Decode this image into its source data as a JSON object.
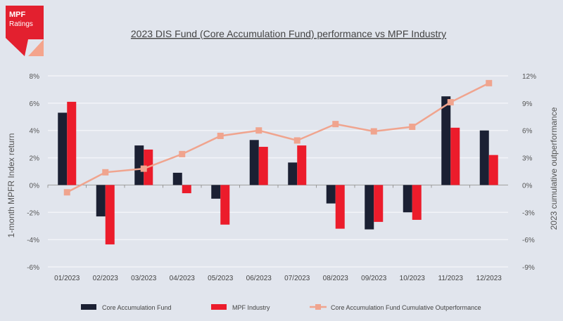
{
  "logo": {
    "line1": "MPF",
    "line2": "Ratings",
    "color": "#e3202f",
    "accent": "#f4a48c"
  },
  "chart_data": {
    "type": "bar+line",
    "title": "2023 DIS Fund (Core Accumulation Fund) performance vs MPF Industry",
    "ylabel": "1-month MPFR Index return",
    "y2label": "2023 cumulative outperformance",
    "ylim": [
      -6,
      8
    ],
    "yticks": [
      "8%",
      "6%",
      "4%",
      "2%",
      "0%",
      "-2%",
      "-4%",
      "-6%"
    ],
    "y2lim": [
      -9,
      12
    ],
    "y2ticks": [
      "12%",
      "9%",
      "6%",
      "3%",
      "0%",
      "-3%",
      "-6%",
      "-9%"
    ],
    "grid": true,
    "legend_position": "bottom",
    "categories": [
      "01/2023",
      "02/2023",
      "03/2023",
      "04/2023",
      "05/2023",
      "06/2023",
      "07/2023",
      "08/2023",
      "09/2023",
      "10/2023",
      "11/2023",
      "12/2023"
    ],
    "series": [
      {
        "name": "Core Accumulation Fund",
        "type": "bar",
        "axis": "left",
        "color": "#1b2033",
        "values": [
          5.3,
          -2.3,
          2.9,
          0.9,
          -1.0,
          3.3,
          1.65,
          -1.35,
          -3.25,
          -2.0,
          6.5,
          4.0
        ]
      },
      {
        "name": "MPF Industry",
        "type": "bar",
        "axis": "left",
        "color": "#ec1c2b",
        "values": [
          6.1,
          -4.35,
          2.6,
          -0.6,
          -2.9,
          2.8,
          2.9,
          -3.2,
          -2.7,
          -2.55,
          4.2,
          2.2
        ]
      },
      {
        "name": "Core Accumulation Fund Cumulative Outperformance",
        "type": "line",
        "axis": "right",
        "color": "#f0a48e",
        "values": [
          -0.8,
          1.4,
          1.8,
          3.4,
          5.4,
          6.0,
          4.9,
          6.7,
          5.9,
          6.4,
          9.1,
          11.2
        ]
      }
    ]
  }
}
